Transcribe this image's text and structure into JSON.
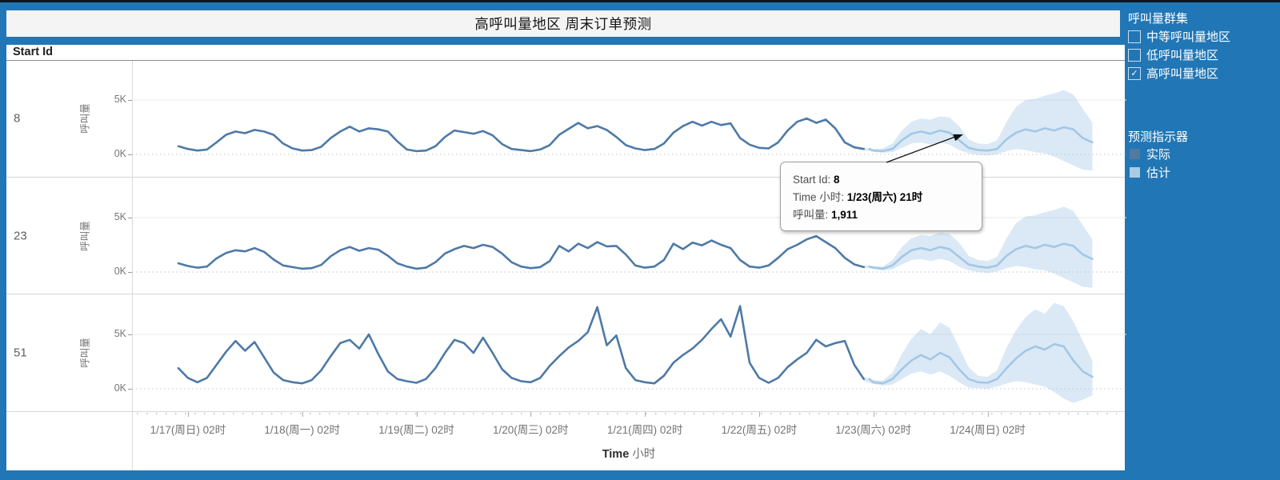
{
  "title": "高呼叫量地区 周末订单预测",
  "row_header": "Start Id",
  "tooltip": {
    "lines": [
      {
        "label": "Start Id: ",
        "value": "8"
      },
      {
        "label": "Time 小时: ",
        "value": "1/23(周六) 21时"
      },
      {
        "label": "呼叫量: ",
        "value": "1,911"
      }
    ]
  },
  "sidebar": {
    "filter_title": "呼叫量群集",
    "filter_items": [
      {
        "label": "中等呼叫量地区",
        "checked": false
      },
      {
        "label": "低呼叫量地区",
        "checked": false
      },
      {
        "label": "高呼叫量地区",
        "checked": true
      }
    ],
    "legend_title": "预测指示器",
    "legend_items": [
      {
        "label": "实际",
        "color": "#54799f"
      },
      {
        "label": "估计",
        "color": "#a9cce6"
      }
    ],
    "checkmark": "✓"
  },
  "colors": {
    "frame_blue": "#2176b5",
    "actual_line": "#4e79a7",
    "forecast_line": "#a3c7e6",
    "forecast_band": "rgba(168,202,230,0.42)",
    "gridline": "#e9e9e9",
    "zero_line": "#c4c4c4"
  },
  "chart_data": {
    "type": "line",
    "title": "高呼叫量地区 周末订单预测",
    "xlabel_en": "Time",
    "xlabel_zh": "小时",
    "ylabel": "呼叫量",
    "units": "thousands of calls (K)",
    "y_ticks": [
      "5K",
      "0K"
    ],
    "ylim_k": [
      0,
      8.6
    ],
    "x_hours_step": 2,
    "actual_start": "1/17 00时",
    "forecast_start": "1/23 00时",
    "forecast_end": "1/25 00时",
    "x_tick_labels": [
      "1/17(周日) 02时",
      "1/18(周一) 02时",
      "1/19(周二) 02时",
      "1/20(周三) 02时",
      "1/21(周四) 02时",
      "1/22(周五) 02时",
      "1/23(周六) 02时",
      "1/24(周日) 02时"
    ],
    "legend_position": "right",
    "grid": "horizontal",
    "rows": [
      {
        "id": "8",
        "actual_k": [
          0.75,
          0.5,
          0.35,
          0.45,
          1.1,
          1.8,
          2.1,
          1.95,
          2.25,
          2.1,
          1.8,
          1.0,
          0.55,
          0.35,
          0.4,
          0.7,
          1.5,
          2.1,
          2.55,
          2.1,
          2.4,
          2.3,
          2.1,
          1.2,
          0.45,
          0.3,
          0.35,
          0.75,
          1.6,
          2.2,
          2.05,
          1.9,
          2.15,
          1.75,
          0.95,
          0.5,
          0.4,
          0.3,
          0.45,
          0.85,
          1.8,
          2.35,
          2.9,
          2.4,
          2.6,
          2.25,
          1.6,
          0.85,
          0.55,
          0.4,
          0.5,
          1.0,
          2.0,
          2.6,
          3.0,
          2.65,
          3.0,
          2.7,
          2.85,
          1.5,
          0.9,
          0.6,
          0.55,
          1.1,
          2.2,
          3.0,
          3.3,
          2.9,
          3.2,
          2.4,
          1.1,
          0.65,
          0.5
        ],
        "forecast_k": [
          0.5,
          0.35,
          0.3,
          0.5,
          1.3,
          1.9,
          2.1,
          1.9,
          2.2,
          2.0,
          1.3,
          0.6,
          0.4,
          0.35,
          0.5,
          1.4,
          2.0,
          2.3,
          2.1,
          2.4,
          2.2,
          2.5,
          2.3,
          1.5,
          1.1
        ],
        "forecast_upper_k": [
          0.6,
          0.5,
          0.55,
          1.0,
          2.2,
          3.0,
          3.3,
          3.2,
          3.5,
          3.4,
          2.6,
          1.4,
          1.0,
          0.95,
          1.3,
          3.0,
          4.4,
          5.0,
          5.1,
          5.4,
          5.6,
          5.9,
          5.5,
          4.2,
          2.9
        ],
        "forecast_lower_k": [
          0.4,
          0.25,
          0.15,
          0.2,
          0.6,
          1.0,
          1.1,
          0.9,
          1.1,
          0.9,
          0.4,
          0.1,
          -0.05,
          -0.1,
          0.0,
          0.3,
          0.5,
          0.4,
          0.2,
          0.1,
          -0.2,
          -0.6,
          -1.0,
          -1.4,
          -1.5
        ]
      },
      {
        "id": "23",
        "actual_k": [
          0.8,
          0.55,
          0.4,
          0.5,
          1.25,
          1.75,
          2.0,
          1.9,
          2.2,
          1.85,
          1.15,
          0.6,
          0.45,
          0.3,
          0.35,
          0.65,
          1.45,
          2.0,
          2.3,
          1.95,
          2.2,
          2.05,
          1.5,
          0.8,
          0.5,
          0.3,
          0.4,
          0.9,
          1.7,
          2.1,
          2.4,
          2.2,
          2.5,
          2.3,
          1.7,
          0.9,
          0.5,
          0.35,
          0.45,
          1.0,
          2.4,
          1.9,
          2.6,
          2.2,
          2.75,
          2.35,
          2.4,
          1.6,
          0.6,
          0.4,
          0.5,
          1.1,
          2.6,
          2.1,
          2.7,
          2.45,
          2.9,
          2.5,
          2.2,
          1.1,
          0.5,
          0.4,
          0.6,
          1.3,
          2.1,
          2.5,
          3.0,
          3.3,
          2.75,
          2.2,
          1.3,
          0.7,
          0.45
        ],
        "forecast_k": [
          0.5,
          0.4,
          0.3,
          0.6,
          1.4,
          2.0,
          2.2,
          2.0,
          2.3,
          2.1,
          1.4,
          0.7,
          0.5,
          0.4,
          0.6,
          1.5,
          2.1,
          2.4,
          2.2,
          2.5,
          2.3,
          2.6,
          2.4,
          1.6,
          1.2
        ],
        "forecast_upper_k": [
          0.65,
          0.55,
          0.5,
          1.1,
          2.3,
          3.1,
          3.4,
          3.3,
          3.6,
          3.5,
          2.7,
          1.5,
          1.1,
          1.0,
          1.4,
          3.1,
          4.5,
          5.1,
          5.2,
          5.5,
          5.7,
          6.0,
          5.6,
          4.3,
          3.0
        ],
        "forecast_lower_k": [
          0.4,
          0.3,
          0.15,
          0.25,
          0.7,
          1.1,
          1.2,
          1.0,
          1.2,
          1.0,
          0.5,
          0.15,
          0.0,
          -0.1,
          0.05,
          0.35,
          0.55,
          0.45,
          0.25,
          0.15,
          -0.15,
          -0.55,
          -0.95,
          -1.35,
          -1.45
        ]
      },
      {
        "id": "51",
        "actual_k": [
          1.9,
          1.0,
          0.6,
          1.0,
          2.2,
          3.4,
          4.4,
          3.5,
          4.3,
          2.9,
          1.5,
          0.8,
          0.6,
          0.5,
          0.8,
          1.7,
          3.0,
          4.2,
          4.5,
          3.7,
          5.0,
          3.2,
          1.6,
          0.9,
          0.7,
          0.55,
          0.9,
          1.9,
          3.3,
          4.5,
          4.2,
          3.3,
          4.7,
          3.3,
          1.8,
          1.0,
          0.7,
          0.6,
          1.0,
          2.1,
          3.0,
          3.8,
          4.4,
          5.2,
          7.5,
          4.0,
          4.9,
          1.9,
          0.8,
          0.6,
          0.5,
          1.2,
          2.4,
          3.1,
          3.7,
          4.5,
          5.5,
          6.4,
          4.8,
          7.6,
          2.4,
          1.0,
          0.55,
          1.0,
          2.0,
          2.7,
          3.3,
          4.5,
          3.9,
          4.2,
          4.4,
          2.2,
          0.9
        ],
        "forecast_k": [
          0.9,
          0.6,
          0.5,
          0.9,
          1.8,
          2.6,
          3.1,
          2.7,
          3.3,
          2.9,
          1.8,
          0.9,
          0.6,
          0.55,
          0.9,
          1.9,
          2.8,
          3.5,
          3.9,
          3.6,
          4.1,
          3.9,
          2.6,
          1.6,
          1.1
        ],
        "forecast_upper_k": [
          1.1,
          0.8,
          0.75,
          1.5,
          3.2,
          4.6,
          5.5,
          5.0,
          6.1,
          5.6,
          3.8,
          2.0,
          1.2,
          1.1,
          1.7,
          3.8,
          5.4,
          6.6,
          7.3,
          6.9,
          7.9,
          7.6,
          6.2,
          4.4,
          2.6
        ],
        "forecast_lower_k": [
          0.7,
          0.45,
          0.3,
          0.4,
          0.9,
          1.4,
          1.6,
          1.3,
          1.6,
          1.2,
          0.6,
          0.1,
          0.05,
          0.0,
          0.2,
          0.5,
          0.7,
          0.6,
          0.4,
          0.2,
          -0.3,
          -0.9,
          -1.3,
          -1.0,
          -0.6
        ]
      }
    ]
  }
}
